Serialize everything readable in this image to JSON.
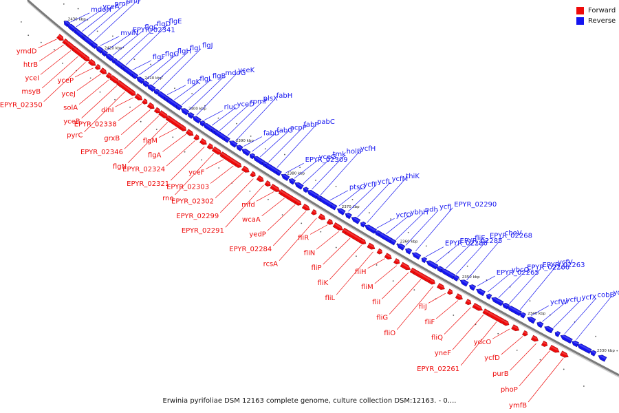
{
  "colors": {
    "forward": "#ee0a0a",
    "reverse": "#1414f0",
    "backbone": "#7a7a7a"
  },
  "legend": [
    {
      "label": "Forward",
      "color": "#ee0a0a"
    },
    {
      "label": "Reverse",
      "color": "#1414f0"
    }
  ],
  "caption": "Erwinia pyrifoliae DSM 12163 complete genome, culture collection DSM:12163. - 0....",
  "scale_marks": [
    "2430 kbp",
    "2420 kbp",
    "2410 kbp",
    "2400 kbp",
    "2390 kbp",
    "2380 kbp",
    "2370 kbp",
    "2360 kbp",
    "2350 kbp",
    "2340 kbp",
    "2330 kbp"
  ],
  "reverse_labels": [
    "mdoH",
    "yceA",
    "proP",
    "rimJ",
    "yceH",
    "mviN",
    "EPYR_02341",
    "flgC",
    "flgD",
    "flgE",
    "flgF",
    "flgG",
    "flgH",
    "flgI",
    "flgJ",
    "flgK",
    "flgL",
    "flgB",
    "mdoG",
    "yceK",
    "rluC",
    "yceD",
    "rpmF",
    "plsX",
    "fabH",
    "fabD",
    "fabG",
    "acpP",
    "fabF",
    "pabC",
    "EPYR_02309",
    "yceG",
    "tmk",
    "holB",
    "ycfH",
    "ptsG",
    "ycfF",
    "ycfL",
    "ycfM",
    "thiK",
    "ycfO",
    "ybhH",
    "ndh",
    "ycfJ",
    "EPYR_02290",
    "EPYR_02286",
    "EPYR_02285",
    "fliE",
    "EPYR_02268",
    "cheV",
    "EPYR_02265",
    "ybcQ",
    "EPYR_02266",
    "EPYR_02263",
    "ycfV",
    "ycfW",
    "ycfU",
    "ycfX",
    "cobB",
    "ydcN"
  ],
  "forward_labels": [
    "ymdD",
    "htrB",
    "yceI",
    "msyB",
    "EPYR_02350",
    "yceP",
    "yceJ",
    "solA",
    "yceB",
    "pyrC",
    "dinI",
    "EPYR_02338",
    "grxB",
    "EPYR_02346",
    "flgN",
    "flgM",
    "flgA",
    "EPYR_02324",
    "EPYR_02321",
    "rne",
    "yceF",
    "EPYR_02303",
    "EPYR_02302",
    "EPYR_02299",
    "EPYR_02291",
    "mfd",
    "wcaA",
    "yedP",
    "EPYR_02284",
    "rcsA",
    "fliR",
    "fliN",
    "fliP",
    "fliK",
    "fliL",
    "fliH",
    "fliM",
    "fliI",
    "fliG",
    "fliO",
    "fliJ",
    "fliF",
    "fliQ",
    "yneF",
    "EPYR_02261",
    "ydcO",
    "ycfD",
    "purB",
    "phoP",
    "ymfB"
  ]
}
